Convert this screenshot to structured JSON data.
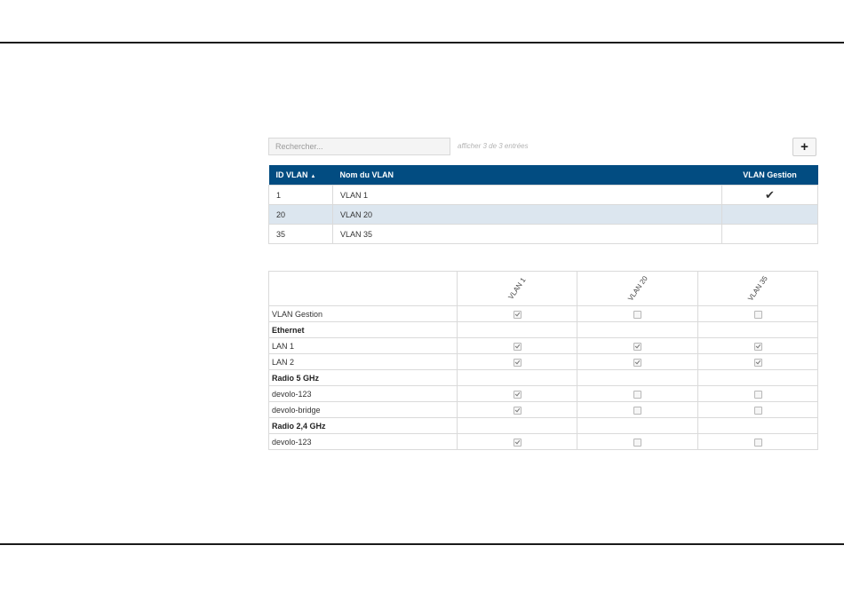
{
  "search": {
    "placeholder": "Rechercher..."
  },
  "entries_info": "afficher 3 de 3 entrées",
  "add_button": {
    "label": "+",
    "icon": "plus-icon"
  },
  "vlan_table": {
    "headers": {
      "id": "ID VLAN",
      "sort_indicator": "▲",
      "name": "Nom du VLAN",
      "mgmt": "VLAN Gestion"
    },
    "header_color": "#024c81",
    "selected_row_color": "#dce6ef",
    "rows": [
      {
        "id": "1",
        "name": "VLAN 1",
        "mgmt": "✔"
      },
      {
        "id": "20",
        "name": "VLAN 20",
        "mgmt": ""
      },
      {
        "id": "35",
        "name": "VLAN 35",
        "mgmt": ""
      }
    ]
  },
  "matrix": {
    "columns": [
      "VLAN 1",
      "VLAN 20",
      "VLAN 35"
    ],
    "rows": [
      {
        "label": "VLAN Gestion",
        "section": false,
        "checks": [
          true,
          false,
          false
        ]
      },
      {
        "label": "Ethernet",
        "section": true
      },
      {
        "label": "LAN 1",
        "section": false,
        "checks": [
          true,
          true,
          true
        ]
      },
      {
        "label": "LAN 2",
        "section": false,
        "checks": [
          true,
          true,
          true
        ]
      },
      {
        "label": "Radio 5 GHz",
        "section": true
      },
      {
        "label": "devolo-123",
        "section": false,
        "checks": [
          true,
          false,
          false
        ]
      },
      {
        "label": "devolo-bridge",
        "section": false,
        "checks": [
          true,
          false,
          false
        ]
      },
      {
        "label": "Radio 2,4 GHz",
        "section": true
      },
      {
        "label": "devolo-123",
        "section": false,
        "checks": [
          true,
          false,
          false
        ]
      }
    ]
  }
}
